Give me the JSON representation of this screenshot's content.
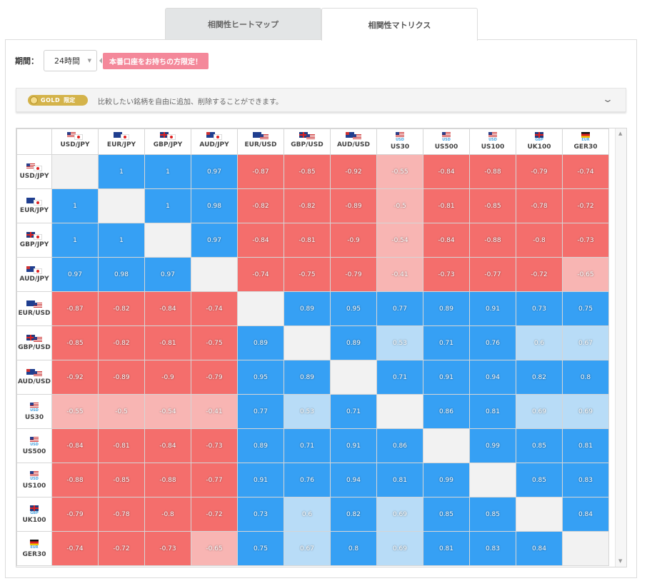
{
  "tabs": [
    {
      "label": "相関性ヒートマップ",
      "active": false
    },
    {
      "label": "相関性マトリクス",
      "active": true
    }
  ],
  "period": {
    "label": "期間：",
    "value": "24時間"
  },
  "promo": {
    "label": "本番口座をお持ちの方限定！"
  },
  "gold_bar": {
    "badge": "GOLD",
    "badge_tag": "限定",
    "text": "比較したい銘柄を自由に追加、削除することができます。"
  },
  "colors": {
    "strong_pos": "#36a0f4",
    "weak_pos": "#b8dcf7",
    "strong_neg": "#f46e6c",
    "weak_neg": "#f8b5b3",
    "diagonal": "#f2f2f2"
  },
  "symbols": [
    {
      "label": "USD/JPY",
      "flags": [
        "us",
        "jp"
      ],
      "sub": ""
    },
    {
      "label": "EUR/JPY",
      "flags": [
        "eu",
        "jp"
      ],
      "sub": ""
    },
    {
      "label": "GBP/JPY",
      "flags": [
        "gb",
        "jp"
      ],
      "sub": ""
    },
    {
      "label": "AUD/JPY",
      "flags": [
        "au",
        "jp"
      ],
      "sub": ""
    },
    {
      "label": "EUR/USD",
      "flags": [
        "eu",
        "us"
      ],
      "sub": ""
    },
    {
      "label": "GBP/USD",
      "flags": [
        "gb",
        "us"
      ],
      "sub": ""
    },
    {
      "label": "AUD/USD",
      "flags": [
        "au",
        "us"
      ],
      "sub": ""
    },
    {
      "label": "US30",
      "flags": [
        "us"
      ],
      "sub": "USD"
    },
    {
      "label": "US500",
      "flags": [
        "us"
      ],
      "sub": "USD"
    },
    {
      "label": "US100",
      "flags": [
        "us"
      ],
      "sub": "USD"
    },
    {
      "label": "UK100",
      "flags": [
        "gb"
      ],
      "sub": "GBP"
    },
    {
      "label": "GER30",
      "flags": [
        "de"
      ],
      "sub": "EUR"
    }
  ],
  "matrix": [
    [
      null,
      "1",
      "1",
      "0.97",
      "-0.87",
      "-0.85",
      "-0.92",
      "-0.55",
      "-0.84",
      "-0.88",
      "-0.79",
      "-0.74"
    ],
    [
      "1",
      null,
      "1",
      "0.98",
      "-0.82",
      "-0.82",
      "-0.89",
      "-0.5",
      "-0.81",
      "-0.85",
      "-0.78",
      "-0.72"
    ],
    [
      "1",
      "1",
      null,
      "0.97",
      "-0.84",
      "-0.81",
      "-0.9",
      "-0.54",
      "-0.84",
      "-0.88",
      "-0.8",
      "-0.73"
    ],
    [
      "0.97",
      "0.98",
      "0.97",
      null,
      "-0.74",
      "-0.75",
      "-0.79",
      "-0.41",
      "-0.73",
      "-0.77",
      "-0.72",
      "-0.65"
    ],
    [
      "-0.87",
      "-0.82",
      "-0.84",
      "-0.74",
      null,
      "0.89",
      "0.95",
      "0.77",
      "0.89",
      "0.91",
      "0.73",
      "0.75"
    ],
    [
      "-0.85",
      "-0.82",
      "-0.81",
      "-0.75",
      "0.89",
      null,
      "0.89",
      "0.53",
      "0.71",
      "0.76",
      "0.6",
      "0.67"
    ],
    [
      "-0.92",
      "-0.89",
      "-0.9",
      "-0.79",
      "0.95",
      "0.89",
      null,
      "0.71",
      "0.91",
      "0.94",
      "0.82",
      "0.8"
    ],
    [
      "-0.55",
      "-0.5",
      "-0.54",
      "-0.41",
      "0.77",
      "0.53",
      "0.71",
      null,
      "0.86",
      "0.81",
      "0.69",
      "0.69"
    ],
    [
      "-0.84",
      "-0.81",
      "-0.84",
      "-0.73",
      "0.89",
      "0.71",
      "0.91",
      "0.86",
      null,
      "0.99",
      "0.85",
      "0.81"
    ],
    [
      "-0.88",
      "-0.85",
      "-0.88",
      "-0.77",
      "0.91",
      "0.76",
      "0.94",
      "0.81",
      "0.99",
      null,
      "0.85",
      "0.83"
    ],
    [
      "-0.79",
      "-0.78",
      "-0.8",
      "-0.72",
      "0.73",
      "0.6",
      "0.82",
      "0.69",
      "0.85",
      "0.85",
      null,
      "0.84"
    ],
    [
      "-0.74",
      "-0.72",
      "-0.73",
      "-0.65",
      "0.75",
      "0.67",
      "0.8",
      "0.69",
      "0.81",
      "0.83",
      "0.84",
      null
    ]
  ]
}
